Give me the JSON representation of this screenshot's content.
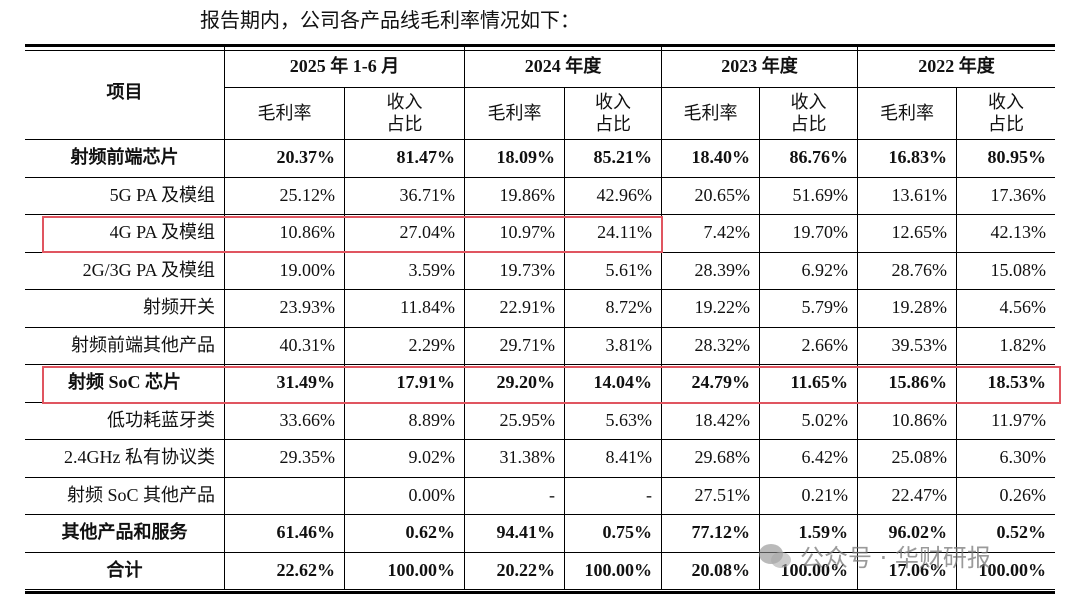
{
  "intro": "报告期内，公司各产品线毛利率情况如下：",
  "watermark": "公众号 · 华财研报",
  "table": {
    "header": {
      "item": "项目",
      "columns": [
        {
          "title": "2025 年 1-6 月",
          "sub": [
            "毛利率",
            "收入\n占比"
          ]
        },
        {
          "title": "2024 年度",
          "sub": [
            "毛利率",
            "收入\n占比"
          ]
        },
        {
          "title": "2023 年度",
          "sub": [
            "毛利率",
            "收入\n占比"
          ]
        },
        {
          "title": "2022 年度",
          "sub": [
            "毛利率",
            "收入\n占比"
          ]
        }
      ]
    },
    "rows": [
      {
        "label": "射频前端芯片",
        "bold": true,
        "values": [
          "20.37%",
          "81.47%",
          "18.09%",
          "85.21%",
          "18.40%",
          "86.76%",
          "16.83%",
          "80.95%"
        ]
      },
      {
        "label": "5G PA 及模组",
        "bold": false,
        "values": [
          "25.12%",
          "36.71%",
          "19.86%",
          "42.96%",
          "20.65%",
          "51.69%",
          "13.61%",
          "17.36%"
        ]
      },
      {
        "label": "4G PA 及模组",
        "bold": false,
        "values": [
          "10.86%",
          "27.04%",
          "10.97%",
          "24.11%",
          "7.42%",
          "19.70%",
          "12.65%",
          "42.13%"
        ]
      },
      {
        "label": "2G/3G PA 及模组",
        "bold": false,
        "values": [
          "19.00%",
          "3.59%",
          "19.73%",
          "5.61%",
          "28.39%",
          "6.92%",
          "28.76%",
          "15.08%"
        ]
      },
      {
        "label": "射频开关",
        "bold": false,
        "values": [
          "23.93%",
          "11.84%",
          "22.91%",
          "8.72%",
          "19.22%",
          "5.79%",
          "19.28%",
          "4.56%"
        ]
      },
      {
        "label": "射频前端其他产品",
        "bold": false,
        "values": [
          "40.31%",
          "2.29%",
          "29.71%",
          "3.81%",
          "28.32%",
          "2.66%",
          "39.53%",
          "1.82%"
        ]
      },
      {
        "label": "射频 SoC 芯片",
        "bold": true,
        "values": [
          "31.49%",
          "17.91%",
          "29.20%",
          "14.04%",
          "24.79%",
          "11.65%",
          "15.86%",
          "18.53%"
        ]
      },
      {
        "label": "低功耗蓝牙类",
        "bold": false,
        "values": [
          "33.66%",
          "8.89%",
          "25.95%",
          "5.63%",
          "18.42%",
          "5.02%",
          "10.86%",
          "11.97%"
        ]
      },
      {
        "label": "2.4GHz 私有协议类",
        "bold": false,
        "values": [
          "29.35%",
          "9.02%",
          "31.38%",
          "8.41%",
          "29.68%",
          "6.42%",
          "25.08%",
          "6.30%"
        ]
      },
      {
        "label": "射频 SoC 其他产品",
        "bold": false,
        "values": [
          null,
          "0.00%",
          "-",
          "-",
          "27.51%",
          "0.21%",
          "22.47%",
          "0.26%"
        ]
      },
      {
        "label": "其他产品和服务",
        "bold": true,
        "values": [
          "61.46%",
          "0.62%",
          "94.41%",
          "0.75%",
          "77.12%",
          "1.59%",
          "96.02%",
          "0.52%"
        ]
      },
      {
        "label": "合计",
        "bold": true,
        "values": [
          "22.62%",
          "100.00%",
          "20.22%",
          "100.00%",
          "20.08%",
          "100.00%",
          "17.06%",
          "100.00%"
        ]
      }
    ]
  }
}
